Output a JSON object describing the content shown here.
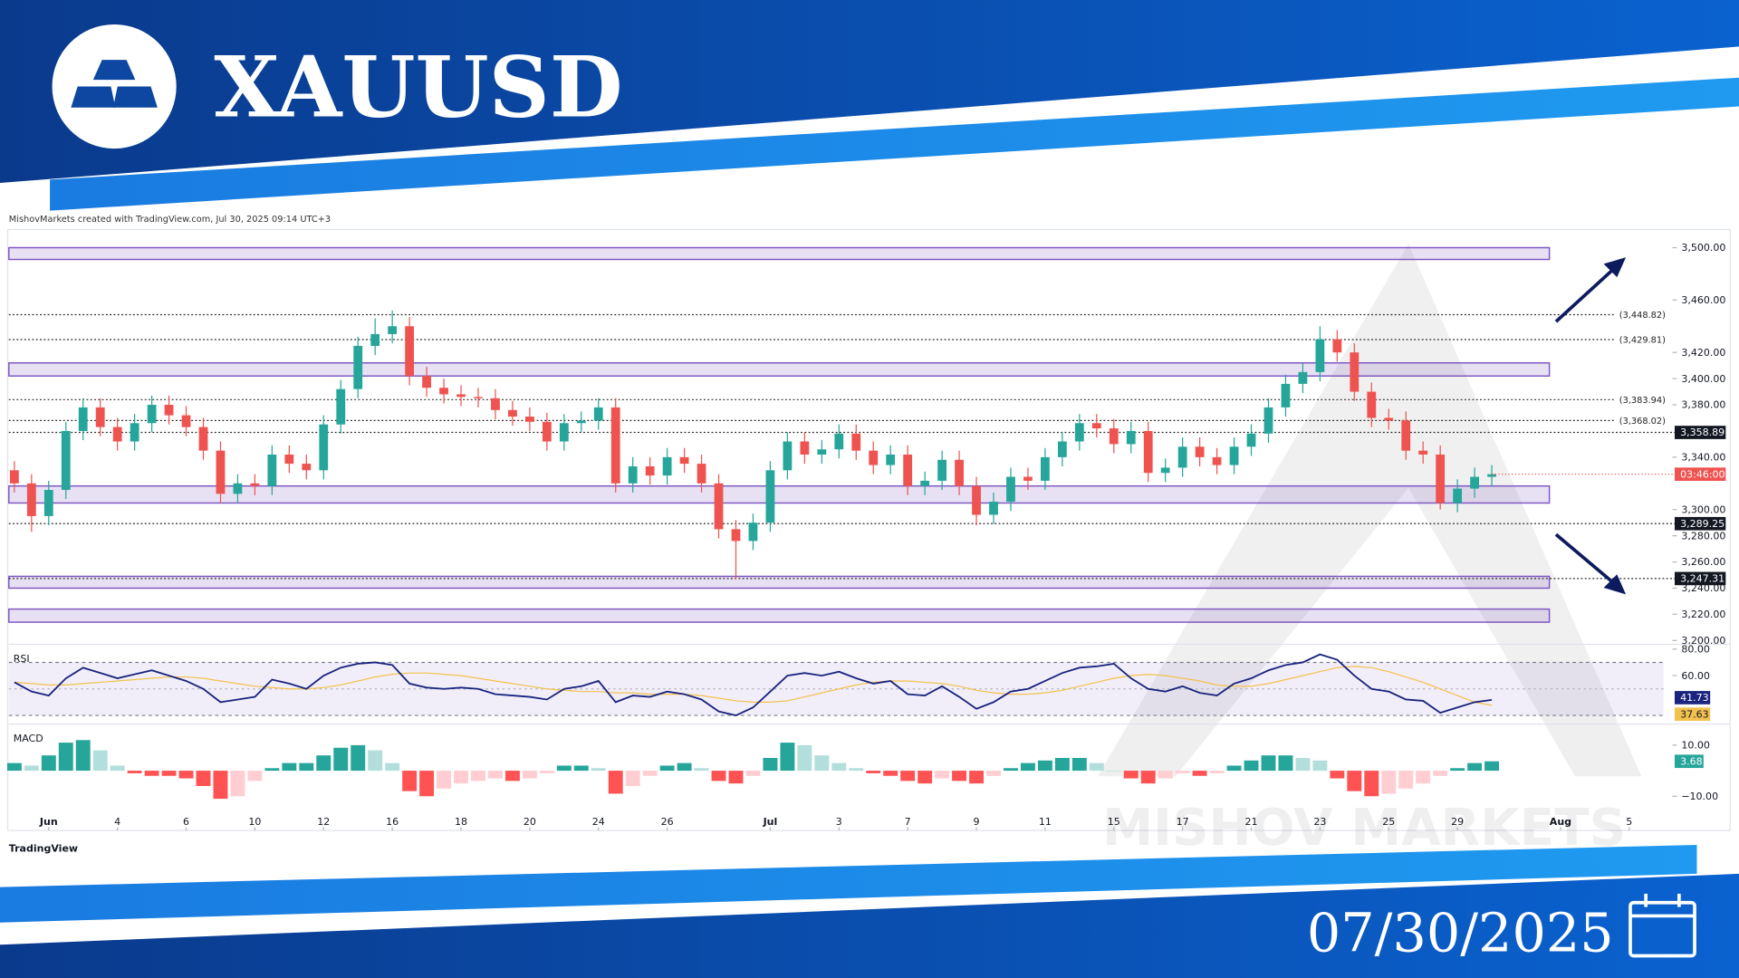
{
  "header": {
    "title": "XAUUSD",
    "date": "07/30/2025"
  },
  "attribution": "MishovMarkets created with TradingView.com, Jul 30, 2025 09:14 UTC+3",
  "footer_brand": "TradingView",
  "watermark": "MISHOV  MARKETS",
  "chart_data": [
    {
      "type": "candlestick",
      "x": [
        -1,
        -0.5,
        0,
        0.5,
        1,
        1.5,
        2,
        2.5,
        3,
        3.5,
        4,
        4.5,
        5,
        5.5,
        6,
        6.5,
        7,
        7.5,
        8,
        8.5,
        9,
        9.5,
        10,
        10.5,
        11,
        11.5,
        12,
        12.5,
        13,
        13.5,
        14,
        14.5,
        15,
        15.5,
        16,
        16.5,
        17,
        17.5,
        18,
        18.5,
        19,
        19.5,
        20,
        20.5,
        21,
        21.5,
        22,
        22.5,
        23,
        23.5,
        24,
        24.5,
        25,
        25.5,
        26,
        26.5,
        27,
        27.5,
        28,
        28.5,
        29,
        29.5,
        30,
        30.5,
        31,
        31.5,
        32,
        32.5,
        33,
        33.5,
        34,
        34.5,
        35,
        35.5,
        36,
        36.5,
        37,
        37.5,
        38,
        38.5,
        39,
        39.5,
        40,
        40.5,
        41,
        41.5,
        42
      ],
      "open": [
        3330,
        3320,
        3295,
        3315,
        3360,
        3378,
        3363,
        3352,
        3366,
        3380,
        3372,
        3363,
        3345,
        3312,
        3320,
        3318,
        3342,
        3335,
        3330,
        3365,
        3392,
        3425,
        3434,
        3440,
        3402,
        3393,
        3388,
        3386,
        3385,
        3376,
        3371,
        3367,
        3352,
        3366,
        3368,
        3378,
        3320,
        3333,
        3326,
        3340,
        3335,
        3320,
        3285,
        3276,
        3290,
        3330,
        3352,
        3342,
        3346,
        3358,
        3345,
        3334,
        3342,
        3318,
        3322,
        3338,
        3318,
        3296,
        3306,
        3325,
        3322,
        3340,
        3352,
        3366,
        3362,
        3350,
        3360,
        3328,
        3332,
        3348,
        3340,
        3334,
        3348,
        3358,
        3378,
        3396,
        3405,
        3430,
        3420,
        3390,
        3370,
        3368,
        3345,
        3342,
        3305,
        3316,
        3325
      ],
      "high": [
        3337,
        3327,
        3322,
        3367,
        3385,
        3385,
        3370,
        3373,
        3387,
        3387,
        3379,
        3370,
        3352,
        3327,
        3327,
        3349,
        3349,
        3342,
        3372,
        3399,
        3432,
        3446,
        3452,
        3447,
        3409,
        3400,
        3395,
        3393,
        3392,
        3383,
        3378,
        3374,
        3373,
        3375,
        3385,
        3385,
        3340,
        3340,
        3347,
        3347,
        3342,
        3327,
        3292,
        3297,
        3337,
        3359,
        3359,
        3353,
        3365,
        3365,
        3352,
        3349,
        3349,
        3329,
        3345,
        3345,
        3325,
        3313,
        3332,
        3332,
        3347,
        3359,
        3373,
        3373,
        3369,
        3367,
        3367,
        3339,
        3355,
        3355,
        3347,
        3355,
        3365,
        3385,
        3403,
        3412,
        3440,
        3437,
        3427,
        3397,
        3377,
        3375,
        3352,
        3349,
        3323,
        3332,
        3334
      ],
      "low": [
        3313,
        3283,
        3288,
        3308,
        3353,
        3356,
        3345,
        3345,
        3359,
        3365,
        3356,
        3338,
        3305,
        3305,
        3311,
        3311,
        3328,
        3323,
        3323,
        3358,
        3385,
        3418,
        3427,
        3395,
        3386,
        3381,
        3379,
        3378,
        3369,
        3364,
        3360,
        3345,
        3345,
        3359,
        3361,
        3313,
        3313,
        3319,
        3319,
        3328,
        3313,
        3278,
        3247,
        3269,
        3283,
        3323,
        3335,
        3335,
        3339,
        3338,
        3327,
        3327,
        3311,
        3311,
        3315,
        3311,
        3288,
        3289,
        3299,
        3315,
        3315,
        3333,
        3345,
        3355,
        3343,
        3343,
        3321,
        3321,
        3325,
        3333,
        3327,
        3327,
        3341,
        3351,
        3371,
        3389,
        3398,
        3413,
        3383,
        3363,
        3361,
        3338,
        3335,
        3300,
        3298,
        3309,
        3318
      ],
      "close": [
        3320,
        3295,
        3315,
        3360,
        3378,
        3363,
        3352,
        3366,
        3380,
        3372,
        3363,
        3345,
        3312,
        3320,
        3318,
        3342,
        3335,
        3330,
        3365,
        3392,
        3425,
        3434,
        3440,
        3402,
        3393,
        3388,
        3386,
        3385,
        3376,
        3371,
        3367,
        3352,
        3366,
        3368,
        3378,
        3320,
        3333,
        3326,
        3340,
        3335,
        3320,
        3285,
        3276,
        3290,
        3330,
        3352,
        3342,
        3346,
        3358,
        3345,
        3334,
        3342,
        3318,
        3322,
        3338,
        3318,
        3296,
        3306,
        3325,
        3322,
        3340,
        3352,
        3366,
        3362,
        3350,
        3360,
        3328,
        3332,
        3348,
        3340,
        3334,
        3348,
        3358,
        3378,
        3396,
        3405,
        3430,
        3420,
        3390,
        3370,
        3368,
        3345,
        3342,
        3305,
        3316,
        3325,
        3327
      ],
      "up_color": "#26a69a",
      "down_color": "#ef5350",
      "xlim": [
        -1.16,
        47
      ],
      "xticks": [
        {
          "value": 0,
          "label": "Jun"
        },
        {
          "value": 2,
          "label": "4"
        },
        {
          "value": 4,
          "label": "6"
        },
        {
          "value": 6,
          "label": "10"
        },
        {
          "value": 8,
          "label": "12"
        },
        {
          "value": 10,
          "label": "16"
        },
        {
          "value": 12,
          "label": "18"
        },
        {
          "value": 14,
          "label": "20"
        },
        {
          "value": 16,
          "label": "24"
        },
        {
          "value": 18,
          "label": "26"
        },
        {
          "value": 21,
          "label": "Jul"
        },
        {
          "value": 23,
          "label": "3"
        },
        {
          "value": 25,
          "label": "7"
        },
        {
          "value": 27,
          "label": "9"
        },
        {
          "value": 29,
          "label": "11"
        },
        {
          "value": 31,
          "label": "15"
        },
        {
          "value": 33,
          "label": "17"
        },
        {
          "value": 35,
          "label": "21"
        },
        {
          "value": 37,
          "label": "23"
        },
        {
          "value": 39,
          "label": "25"
        },
        {
          "value": 41,
          "label": "29"
        },
        {
          "value": 44,
          "label": "Aug"
        },
        {
          "value": 46,
          "label": "5"
        }
      ],
      "ylim": [
        3198,
        3513
      ],
      "yticks": [
        {
          "value": 3500,
          "label": "3,500.00"
        },
        {
          "value": 3460,
          "label": "3,460.00"
        },
        {
          "value": 3420,
          "label": "3,420.00"
        },
        {
          "value": 3400,
          "label": "3,400.00"
        },
        {
          "value": 3380,
          "label": "3,380.00"
        },
        {
          "value": 3340,
          "label": "3,340.00"
        },
        {
          "value": 3300,
          "label": "3,300.00"
        },
        {
          "value": 3280,
          "label": "3,280.00"
        },
        {
          "value": 3260,
          "label": "3,260.00"
        },
        {
          "value": 3240,
          "label": "3,240.00"
        },
        {
          "value": 3220,
          "label": "3,220.00"
        },
        {
          "value": 3200,
          "label": "3,200.00"
        }
      ],
      "zones": [
        {
          "low": 3491,
          "high": 3500
        },
        {
          "low": 3402,
          "high": 3412
        },
        {
          "low": 3305,
          "high": 3318
        },
        {
          "low": 3240,
          "high": 3249
        },
        {
          "low": 3214,
          "high": 3224
        }
      ],
      "zone_color": "#7e57c2",
      "levels": [
        {
          "value": 3448.82,
          "label": "(3,448.82)"
        },
        {
          "value": 3429.81,
          "label": "(3,429.81)"
        },
        {
          "value": 3383.94,
          "label": "(3,383.94)"
        },
        {
          "value": 3368.02,
          "label": "(3,368.02)"
        }
      ],
      "price_tags": [
        {
          "value": 3358.89,
          "label": "3,358.89"
        },
        {
          "value": 3289.25,
          "label": "3,289.25"
        },
        {
          "value": 3247.31,
          "label": "3,247.31"
        }
      ],
      "countdown": "03:46:00"
    },
    {
      "type": "line",
      "title": "RSI",
      "ylim": [
        26,
        82
      ],
      "yticks": [
        {
          "value": 80,
          "label": "80.00"
        },
        {
          "value": 60,
          "label": "60.00"
        }
      ],
      "band": [
        30,
        70
      ],
      "series": [
        {
          "color": "#1a237e",
          "last_label": "41.73",
          "values": [
            55,
            48,
            45,
            58,
            66,
            62,
            58,
            61,
            64,
            60,
            56,
            50,
            40,
            42,
            44,
            57,
            54,
            50,
            60,
            66,
            69,
            70,
            68,
            54,
            51,
            50,
            51,
            50,
            46,
            45,
            44,
            42,
            50,
            52,
            56,
            40,
            45,
            44,
            48,
            46,
            42,
            33,
            30,
            36,
            48,
            60,
            62,
            60,
            63,
            58,
            54,
            56,
            46,
            45,
            52,
            44,
            35,
            40,
            48,
            50,
            56,
            62,
            66,
            67,
            69,
            58,
            50,
            48,
            52,
            47,
            45,
            54,
            58,
            64,
            68,
            70,
            76,
            72,
            60,
            50,
            48,
            42,
            41,
            32,
            36,
            40,
            41.73
          ]
        },
        {
          "color": "#f2c14e",
          "last_label": "37.63",
          "values": [
            55,
            54,
            53,
            53,
            54,
            55,
            56,
            57,
            58,
            59,
            59,
            58,
            56,
            54,
            52,
            51,
            50,
            50,
            51,
            53,
            56,
            59,
            61,
            62,
            62,
            61,
            60,
            58,
            56,
            54,
            52,
            50,
            49,
            48,
            48,
            47,
            47,
            46,
            46,
            46,
            45,
            43,
            41,
            40,
            40,
            41,
            44,
            47,
            50,
            53,
            55,
            56,
            56,
            55,
            54,
            52,
            49,
            47,
            46,
            46,
            47,
            49,
            52,
            55,
            58,
            60,
            61,
            60,
            58,
            56,
            53,
            52,
            52,
            54,
            57,
            60,
            63,
            66,
            67,
            66,
            63,
            59,
            55,
            50,
            45,
            40,
            37.63
          ]
        }
      ]
    },
    {
      "type": "bar",
      "title": "MACD",
      "ylim": [
        -21.7,
        17.4
      ],
      "yticks": [
        {
          "value": 10,
          "label": "10.00"
        },
        {
          "value": -10,
          "label": "−10.00"
        }
      ],
      "colors": {
        "up_strong": "#26a69a",
        "up_light": "#b2dfdb",
        "down_strong": "#ff5252",
        "down_light": "#ffcdd2"
      },
      "last_label": "3.68",
      "values": [
        3,
        2,
        6,
        11,
        12,
        8,
        2,
        -1,
        -2,
        -2,
        -3,
        -6,
        -11,
        -10,
        -4,
        1,
        3,
        3,
        6,
        9,
        10,
        8,
        3,
        -8,
        -10,
        -7,
        -5,
        -4,
        -3,
        -4,
        -3,
        -1,
        2,
        2,
        1,
        -9,
        -6,
        -2,
        2,
        3,
        1,
        -4,
        -5,
        -2,
        5,
        11,
        10,
        6,
        3,
        1,
        -1,
        -2,
        -4,
        -5,
        -3,
        -4,
        -5,
        -2,
        1,
        3,
        4,
        5,
        5,
        3,
        0,
        -3,
        -5,
        -3,
        -1,
        -2,
        -1,
        2,
        4,
        6,
        6,
        5,
        4,
        -3,
        -8,
        -10,
        -9,
        -7,
        -5,
        -2,
        1,
        3,
        3.68
      ]
    }
  ]
}
